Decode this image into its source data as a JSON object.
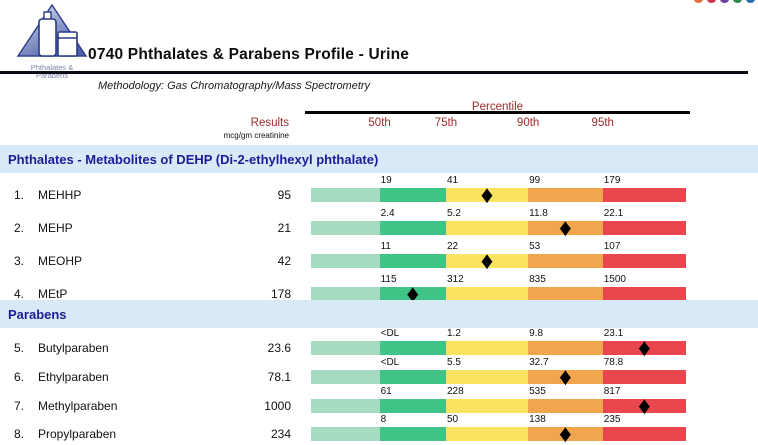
{
  "page": {
    "dots_colors": [
      "#e0703a",
      "#cf3347",
      "#6a3fa0",
      "#2e8b4f",
      "#2c6fad"
    ]
  },
  "logo": {
    "caption_line1": "Phthalates &",
    "caption_line2": "Parabens"
  },
  "header": {
    "title": "0740 Phthalates & Parabens Profile - Urine",
    "methodology": "Methodology: Gas Chromatography/Mass Spectrometry"
  },
  "table": {
    "results_label": "Results",
    "results_units": "mcg/gm creatinine",
    "percentile_label": "Percentile",
    "percentile_headers": [
      "50th",
      "75th",
      "90th",
      "95th"
    ]
  },
  "chart_data": {
    "type": "bar",
    "subtype": "horizontal-percentile-band-chart",
    "description": "Each analyte row shows a 5-segment colored band (below 50th, 50-75th, 75-90th, 90-95th, above 95th percentile). Tick labels above the band give the 50th/75th/90th/95th percentile reference values; a black diamond marks the segment containing the patient result.",
    "units": "mcg/gm creatinine",
    "percentile_headers": [
      "50th",
      "75th",
      "90th",
      "95th"
    ],
    "segment_colors": [
      "#a5dcc1",
      "#3fc386",
      "#f9e35f",
      "#f2a54d",
      "#e9474d"
    ],
    "segment_widths_pct": [
      18.3,
      17.7,
      21.9,
      19.9,
      22.2
    ],
    "legend_position": "none",
    "sections": [
      {
        "title": "Phthalates - Metabolites of DEHP (Di-2-ethylhexyl phthalate)",
        "rows": [
          {
            "num": "1.",
            "name": "MEHHP",
            "result": "95",
            "ticks": [
              "19",
              "41",
              "99",
              "179"
            ]
          },
          {
            "num": "2.",
            "name": "MEHP",
            "result": "21",
            "ticks": [
              "2.4",
              "5.2",
              "11.8",
              "22.1"
            ]
          },
          {
            "num": "3.",
            "name": "MEOHP",
            "result": "42",
            "ticks": [
              "11",
              "22",
              "53",
              "107"
            ]
          },
          {
            "num": "4.",
            "name": "MEtP",
            "result": "178",
            "ticks": [
              "115",
              "312",
              "835",
              "1500"
            ]
          }
        ]
      },
      {
        "title": "Parabens",
        "rows": [
          {
            "num": "5.",
            "name": "Butylparaben",
            "result": "23.6",
            "ticks": [
              "<DL",
              "1.2",
              "9.8",
              "23.1"
            ]
          },
          {
            "num": "6.",
            "name": "Ethylparaben",
            "result": "78.1",
            "ticks": [
              "<DL",
              "5.5",
              "32.7",
              "78.8"
            ]
          },
          {
            "num": "7.",
            "name": "Methylparaben",
            "result": "1000",
            "ticks": [
              "61",
              "228",
              "535",
              "817"
            ]
          },
          {
            "num": "8.",
            "name": "Propylparaben",
            "result": "234",
            "ticks": [
              "8",
              "50",
              "138",
              "235"
            ]
          }
        ]
      }
    ]
  }
}
